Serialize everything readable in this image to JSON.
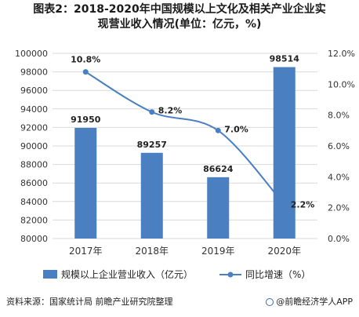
{
  "title_line1": "图表2：2018-2020年中国规模以上文化及相关产业企业实",
  "title_line2": "现营业收入情况(单位：亿元，%)",
  "source_text": "资料来源：国家统计局 前瞻产业研究院整理",
  "brand_text": "@前瞻经济学人APP",
  "colors": {
    "bar": "#4a7fc1",
    "line": "#4a7fc1",
    "grid": "#d9d9d9",
    "text": "#333333"
  },
  "chart_data": {
    "type": "bar",
    "categories": [
      "2017年",
      "2018年",
      "2019年",
      "2020年"
    ],
    "series": [
      {
        "name": "规模以上企业营业收入（亿元）",
        "type": "bar",
        "axis": "left",
        "values": [
          91950,
          89257,
          86624,
          98514
        ],
        "labels": [
          "91950",
          "89257",
          "86624",
          "98514"
        ]
      },
      {
        "name": "同比增速（%）",
        "type": "line",
        "axis": "right",
        "values": [
          10.8,
          8.2,
          7.0,
          2.2
        ],
        "labels": [
          "10.8%",
          "8.2%",
          "7.0%",
          "2.2%"
        ]
      }
    ],
    "y_left": {
      "min": 80000,
      "max": 100000,
      "step": 2000,
      "ticks": [
        "80000",
        "82000",
        "84000",
        "86000",
        "88000",
        "90000",
        "92000",
        "94000",
        "96000",
        "98000",
        "100000"
      ]
    },
    "y_right": {
      "min": 0,
      "max": 12,
      "step": 2,
      "ticks": [
        "0.0%",
        "2.0%",
        "4.0%",
        "6.0%",
        "8.0%",
        "10.0%",
        "12.0%"
      ]
    },
    "legend_position": "bottom",
    "grid": true
  }
}
